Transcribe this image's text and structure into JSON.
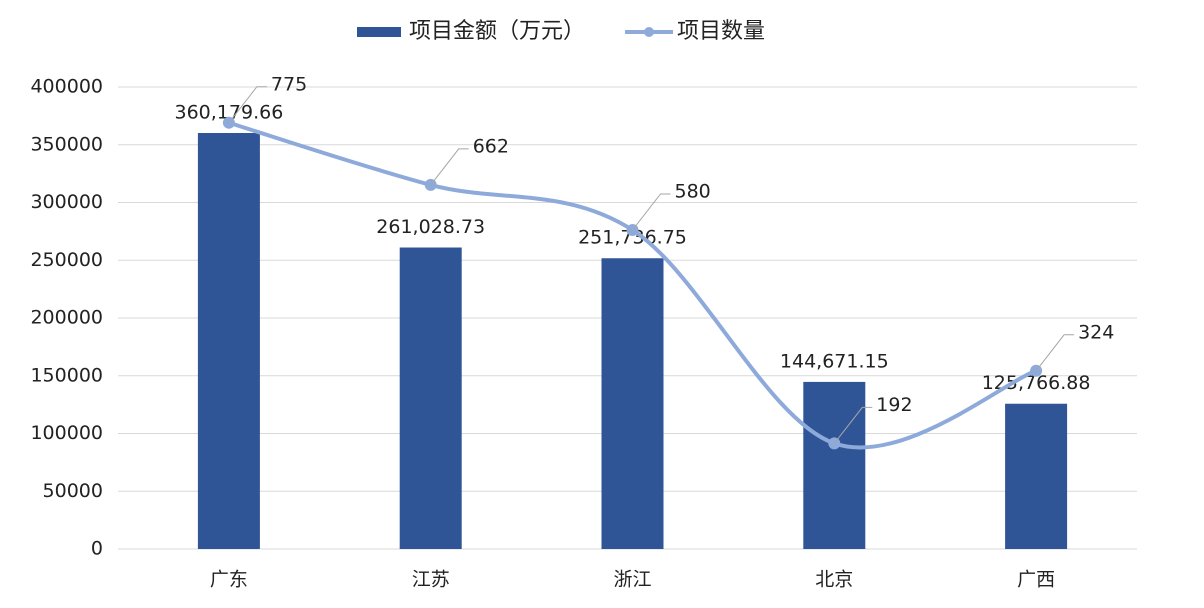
{
  "chart_data": {
    "type": "bar-line",
    "categories": [
      "广东",
      "江苏",
      "浙江",
      "北京",
      "广西"
    ],
    "series": [
      {
        "name": "项目金额（万元）",
        "type": "bar",
        "color": "#2f5597",
        "values": [
          360179.66,
          261028.73,
          251736.75,
          144671.15,
          125766.88
        ],
        "value_labels": [
          "360,179.66",
          "261,028.73",
          "251,736.75",
          "144,671.15",
          "125,766.88"
        ]
      },
      {
        "name": "项目数量",
        "type": "line",
        "axis": "y2",
        "color": "#8eaadb",
        "values": [
          775,
          662,
          580,
          192,
          324
        ]
      }
    ],
    "ylim": [
      0,
      400000
    ],
    "yticks": [
      0,
      50000,
      100000,
      150000,
      200000,
      250000,
      300000,
      350000,
      400000
    ],
    "y2lim": [
      0,
      840
    ],
    "grid": true,
    "legend": "top"
  }
}
